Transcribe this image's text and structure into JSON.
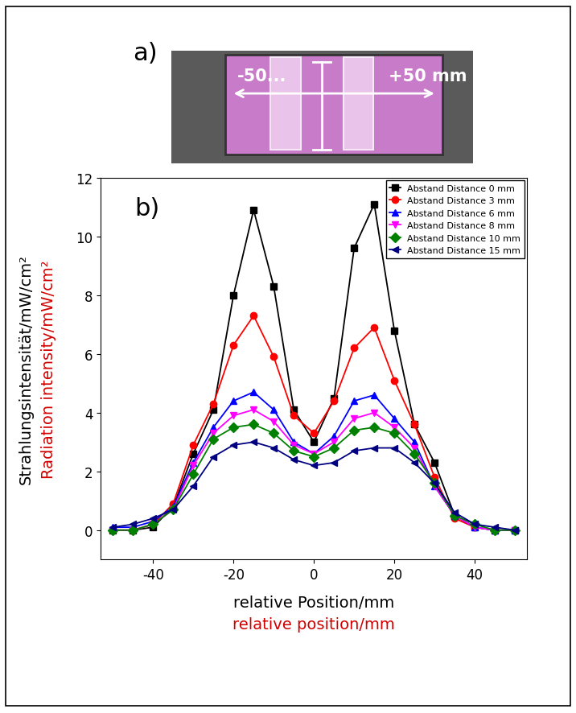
{
  "image": {
    "label": "a)",
    "texts": [
      "-50...",
      "+50 mm"
    ]
  },
  "chart_data": {
    "type": "line",
    "panel_label": "b)",
    "y_label": [
      "Strahlungsintensität/mW/cm²",
      "Radiation intensity/mW/cm²"
    ],
    "x_label": [
      "relative Position/mm",
      "relative position/mm"
    ],
    "x": [
      -50,
      -45,
      -40,
      -35,
      -30,
      -25,
      -20,
      -15,
      -10,
      -5,
      0,
      5,
      10,
      15,
      20,
      25,
      30,
      35,
      40,
      45,
      50
    ],
    "xlim": [
      -53,
      53
    ],
    "xticks": [
      -40,
      -20,
      0,
      20,
      40
    ],
    "ylim": [
      -1,
      12
    ],
    "yticks": [
      0,
      2,
      4,
      6,
      8,
      10,
      12
    ],
    "legend": "upper right",
    "series": [
      {
        "name": "Abstand Distance 0 mm",
        "color": "#000000",
        "marker": "square",
        "values": [
          0,
          0,
          0.1,
          0.8,
          2.6,
          4.1,
          8.0,
          10.9,
          8.3,
          4.1,
          3.0,
          4.5,
          9.6,
          11.1,
          6.8,
          3.6,
          2.3,
          0.5,
          0.1,
          0,
          0
        ]
      },
      {
        "name": "Abstand Distance 3 mm",
        "color": "#ff0000",
        "marker": "circle",
        "values": [
          0,
          0,
          0.2,
          0.9,
          2.9,
          4.3,
          6.3,
          7.3,
          5.9,
          3.9,
          3.3,
          4.4,
          6.2,
          6.9,
          5.1,
          3.6,
          1.8,
          0.4,
          0.1,
          0,
          0
        ]
      },
      {
        "name": "Abstand Distance 6 mm",
        "color": "#0000ff",
        "marker": "triangle_up",
        "values": [
          0.1,
          0.1,
          0.3,
          0.8,
          2.3,
          3.5,
          4.4,
          4.7,
          4.1,
          3.0,
          2.6,
          3.2,
          4.4,
          4.6,
          3.8,
          3.0,
          1.5,
          0.5,
          0.1,
          0,
          0
        ]
      },
      {
        "name": "Abstand Distance 8 mm",
        "color": "#ff00ff",
        "marker": "triangle_down",
        "values": [
          0,
          0,
          0.2,
          0.7,
          2.2,
          3.3,
          3.9,
          4.1,
          3.7,
          2.9,
          2.6,
          3.0,
          3.8,
          4.0,
          3.5,
          2.8,
          1.5,
          0.5,
          0.1,
          0,
          0
        ]
      },
      {
        "name": "Abstand Distance 10 mm",
        "color": "#008000",
        "marker": "diamond",
        "values": [
          0,
          0,
          0.2,
          0.7,
          1.9,
          3.1,
          3.5,
          3.6,
          3.3,
          2.7,
          2.5,
          2.8,
          3.4,
          3.5,
          3.3,
          2.6,
          1.6,
          0.5,
          0.2,
          0,
          0
        ]
      },
      {
        "name": "Abstand Distance 15 mm",
        "color": "#000080",
        "marker": "triangle_left",
        "values": [
          0.1,
          0.2,
          0.4,
          0.7,
          1.5,
          2.5,
          2.9,
          3.0,
          2.8,
          2.4,
          2.2,
          2.3,
          2.7,
          2.8,
          2.8,
          2.3,
          1.6,
          0.6,
          0.2,
          0.1,
          0
        ]
      }
    ]
  }
}
